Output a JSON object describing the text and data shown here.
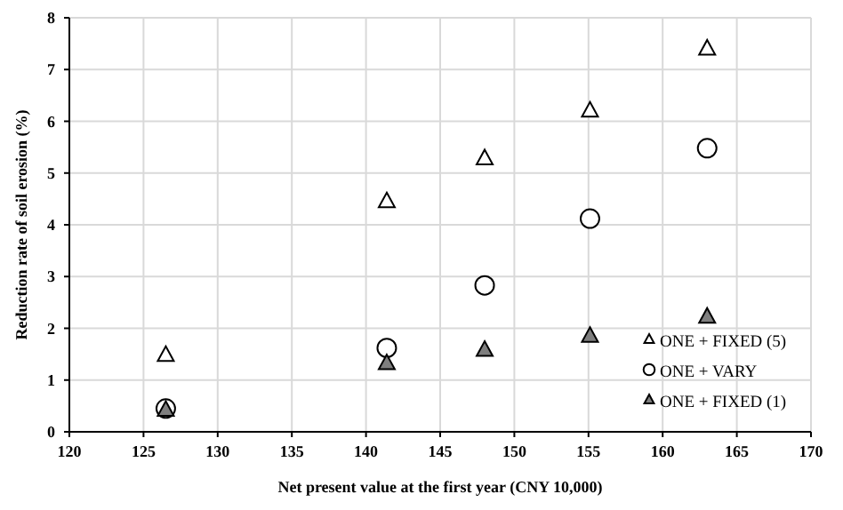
{
  "chart_data": {
    "type": "scatter",
    "xlabel": "Net present value at the first year (CNY 10,000)",
    "ylabel": "Reduction rate of soil erosion (%)",
    "xlim": [
      120,
      170
    ],
    "xticks": [
      120,
      125,
      130,
      135,
      140,
      145,
      150,
      155,
      160,
      165,
      170
    ],
    "ylim": [
      0,
      8
    ],
    "yticks": [
      0,
      1,
      2,
      3,
      4,
      5,
      6,
      7,
      8
    ],
    "grid": true,
    "legend": "bottom right",
    "x": [
      126.5,
      141.4,
      148,
      155.1,
      163
    ],
    "series": [
      {
        "name": "ONE + FIXED (5)",
        "color": "#000000",
        "marker": "triangle",
        "values": [
          1.48,
          4.45,
          5.28,
          6.2,
          7.4
        ]
      },
      {
        "name": "ONE + VARY",
        "color": "#000000",
        "marker": "circle",
        "values": [
          0.45,
          1.62,
          2.83,
          4.12,
          5.48
        ]
      },
      {
        "name": "ONE + FIXED (1)",
        "color": "#7f7f7f",
        "marker": "triangle",
        "values": [
          0.42,
          1.32,
          1.58,
          1.85,
          2.22
        ]
      }
    ]
  }
}
